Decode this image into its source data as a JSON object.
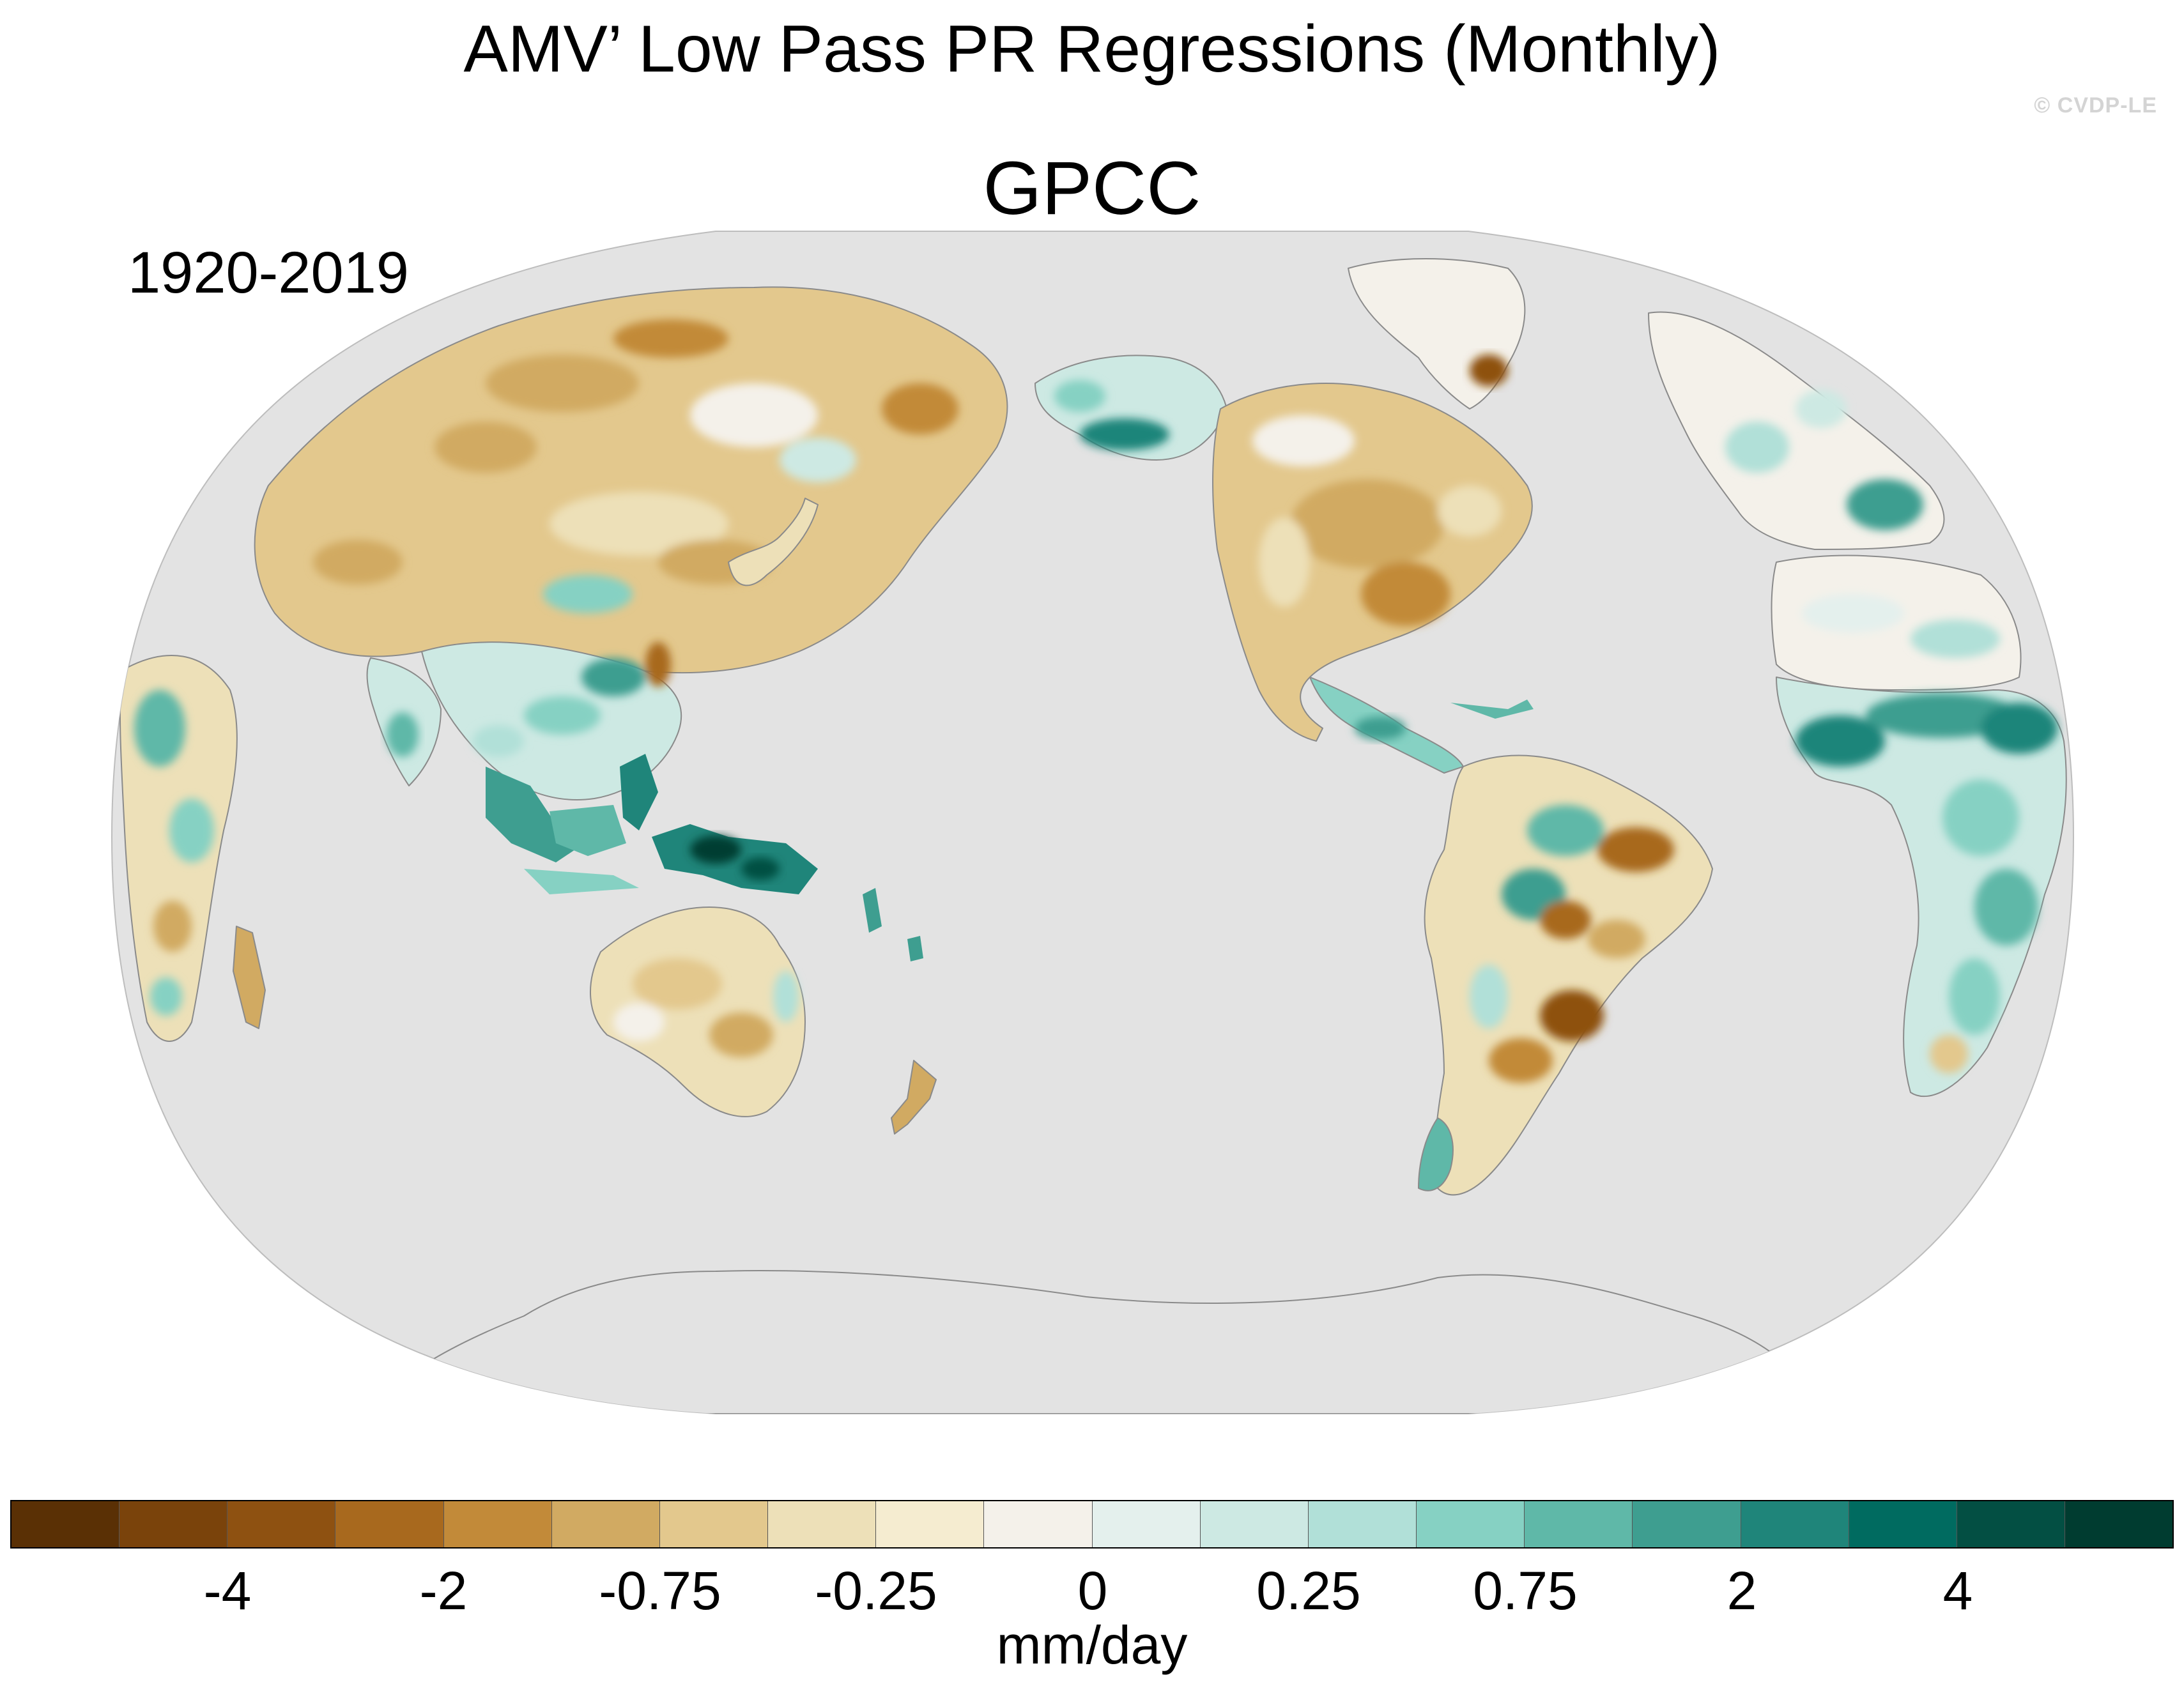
{
  "title": "AMV’ Low Pass PR Regressions (Monthly)",
  "dataset": "GPCC",
  "period": "1920-2019",
  "credit": "© CVDP-LE",
  "map": {
    "projection": "Robinson (Pacific-centered)",
    "ocean_color": "#e3e3e3",
    "coast_color": "#8a8a8a",
    "regions": [
      {
        "name": "siberia",
        "tone": "dry-moderate"
      },
      {
        "name": "europe",
        "tone": "wet-light"
      },
      {
        "name": "west-africa",
        "tone": "wet-strong"
      },
      {
        "name": "sahel-africa",
        "tone": "wet-strong"
      },
      {
        "name": "east-africa",
        "tone": "wet-moderate"
      },
      {
        "name": "madagascar",
        "tone": "dry-light"
      },
      {
        "name": "india",
        "tone": "wet-light"
      },
      {
        "name": "maritime-continent",
        "tone": "wet-strong"
      },
      {
        "name": "new-guinea",
        "tone": "wet-very-strong"
      },
      {
        "name": "australia",
        "tone": "dry-light"
      },
      {
        "name": "new-zealand",
        "tone": "dry-light"
      },
      {
        "name": "alaska",
        "tone": "wet-moderate"
      },
      {
        "name": "north-america",
        "tone": "dry-light"
      },
      {
        "name": "eastern-us",
        "tone": "dry-moderate"
      },
      {
        "name": "central-america",
        "tone": "wet-moderate"
      },
      {
        "name": "greenland",
        "tone": "neutral"
      },
      {
        "name": "amazon",
        "tone": "wet-moderate"
      },
      {
        "name": "brazil",
        "tone": "dry-moderate"
      },
      {
        "name": "southern-south-america",
        "tone": "dry-moderate"
      },
      {
        "name": "patagonia-chile",
        "tone": "wet-moderate"
      },
      {
        "name": "antarctica",
        "tone": "missing"
      }
    ]
  },
  "colorbar": {
    "units": "mm/day",
    "colors": [
      "#5a3005",
      "#7a430b",
      "#8e5111",
      "#a8691e",
      "#c28a39",
      "#d1aa62",
      "#e3c88d",
      "#ede0b8",
      "#f5ecd0",
      "#f4f1ea",
      "#e4f0ed",
      "#cde9e3",
      "#b1e0d8",
      "#86d1c3",
      "#5fb8a8",
      "#3e9e90",
      "#1f857a",
      "#006b60",
      "#034f43",
      "#003c30"
    ],
    "tick_labels": [
      "-4",
      "-2",
      "-0.75",
      "-0.25",
      "0",
      "0.25",
      "0.75",
      "2",
      "4"
    ]
  }
}
